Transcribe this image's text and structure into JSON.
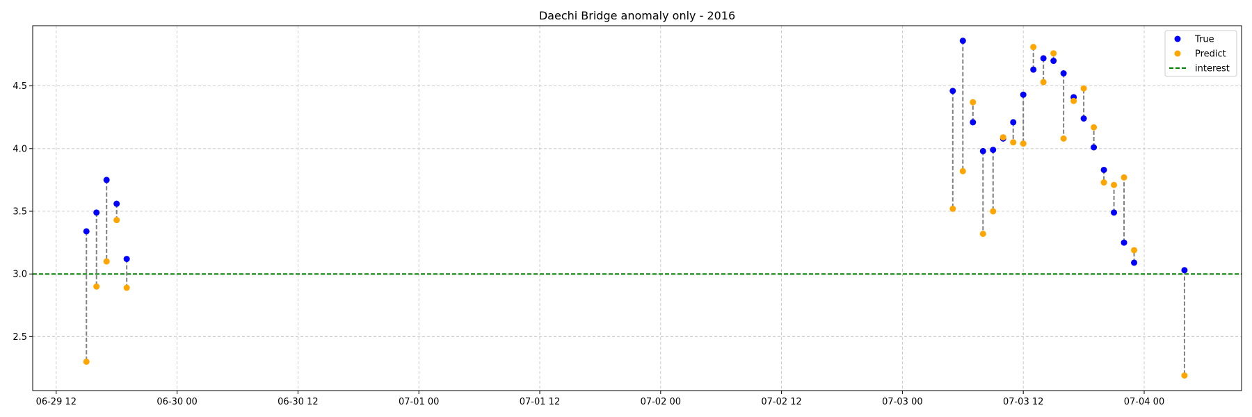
{
  "chart_data": {
    "type": "scatter",
    "title": "Daechi Bridge anomaly only - 2016",
    "xlabel": "",
    "ylabel": "",
    "x_tick_labels": [
      "06-29 12",
      "06-30 00",
      "06-30 12",
      "07-01 00",
      "07-01 12",
      "07-02 00",
      "07-02 12",
      "07-03 00",
      "07-03 12",
      "07-04 00"
    ],
    "x_ticks": [
      "2016-06-29T12:00",
      "2016-06-30T00:00",
      "2016-06-30T12:00",
      "2016-07-01T00:00",
      "2016-07-01T12:00",
      "2016-07-02T00:00",
      "2016-07-02T12:00",
      "2016-07-03T00:00",
      "2016-07-03T12:00",
      "2016-07-04T00:00"
    ],
    "xlim": [
      "2016-06-29T09:40",
      "2016-07-04T09:40"
    ],
    "y_tick_labels": [
      "2.5",
      "3.0",
      "3.5",
      "4.0",
      "4.5"
    ],
    "y_ticks": [
      2.5,
      3.0,
      3.5,
      4.0,
      4.5
    ],
    "ylim": [
      2.07,
      4.98
    ],
    "grid": true,
    "legend_position": "top-right",
    "interest_line": 3.0,
    "x": [
      "2016-06-29T15:00",
      "2016-06-29T16:00",
      "2016-06-29T17:00",
      "2016-06-29T18:00",
      "2016-06-29T19:00",
      "2016-07-03T05:00",
      "2016-07-03T06:00",
      "2016-07-03T07:00",
      "2016-07-03T08:00",
      "2016-07-03T09:00",
      "2016-07-03T10:00",
      "2016-07-03T11:00",
      "2016-07-03T12:00",
      "2016-07-03T13:00",
      "2016-07-03T14:00",
      "2016-07-03T15:00",
      "2016-07-03T16:00",
      "2016-07-03T17:00",
      "2016-07-03T18:00",
      "2016-07-03T19:00",
      "2016-07-03T20:00",
      "2016-07-03T21:00",
      "2016-07-03T22:00",
      "2016-07-03T23:00",
      "2016-07-04T04:00"
    ],
    "series": [
      {
        "name": "True",
        "color": "#0000ff",
        "values": [
          3.34,
          3.49,
          3.75,
          3.56,
          3.12,
          4.46,
          4.86,
          4.21,
          3.98,
          3.99,
          4.08,
          4.21,
          4.43,
          4.63,
          4.72,
          4.7,
          4.6,
          4.41,
          4.24,
          4.01,
          3.83,
          3.49,
          3.25,
          3.09,
          3.03
        ]
      },
      {
        "name": "Predict",
        "color": "#ffa500",
        "values": [
          2.3,
          2.9,
          3.1,
          3.43,
          2.89,
          3.52,
          3.82,
          4.37,
          3.32,
          3.5,
          4.09,
          4.05,
          4.04,
          4.81,
          4.53,
          4.76,
          4.08,
          4.38,
          4.48,
          4.17,
          3.73,
          3.71,
          3.77,
          3.19,
          2.19
        ]
      }
    ],
    "legend": [
      "True",
      "Predict",
      "interest"
    ],
    "colors": {
      "true": "#0000ff",
      "predict": "#ffa500",
      "interest": "#008000",
      "connector": "#808080",
      "grid": "#b0b0b0"
    }
  }
}
